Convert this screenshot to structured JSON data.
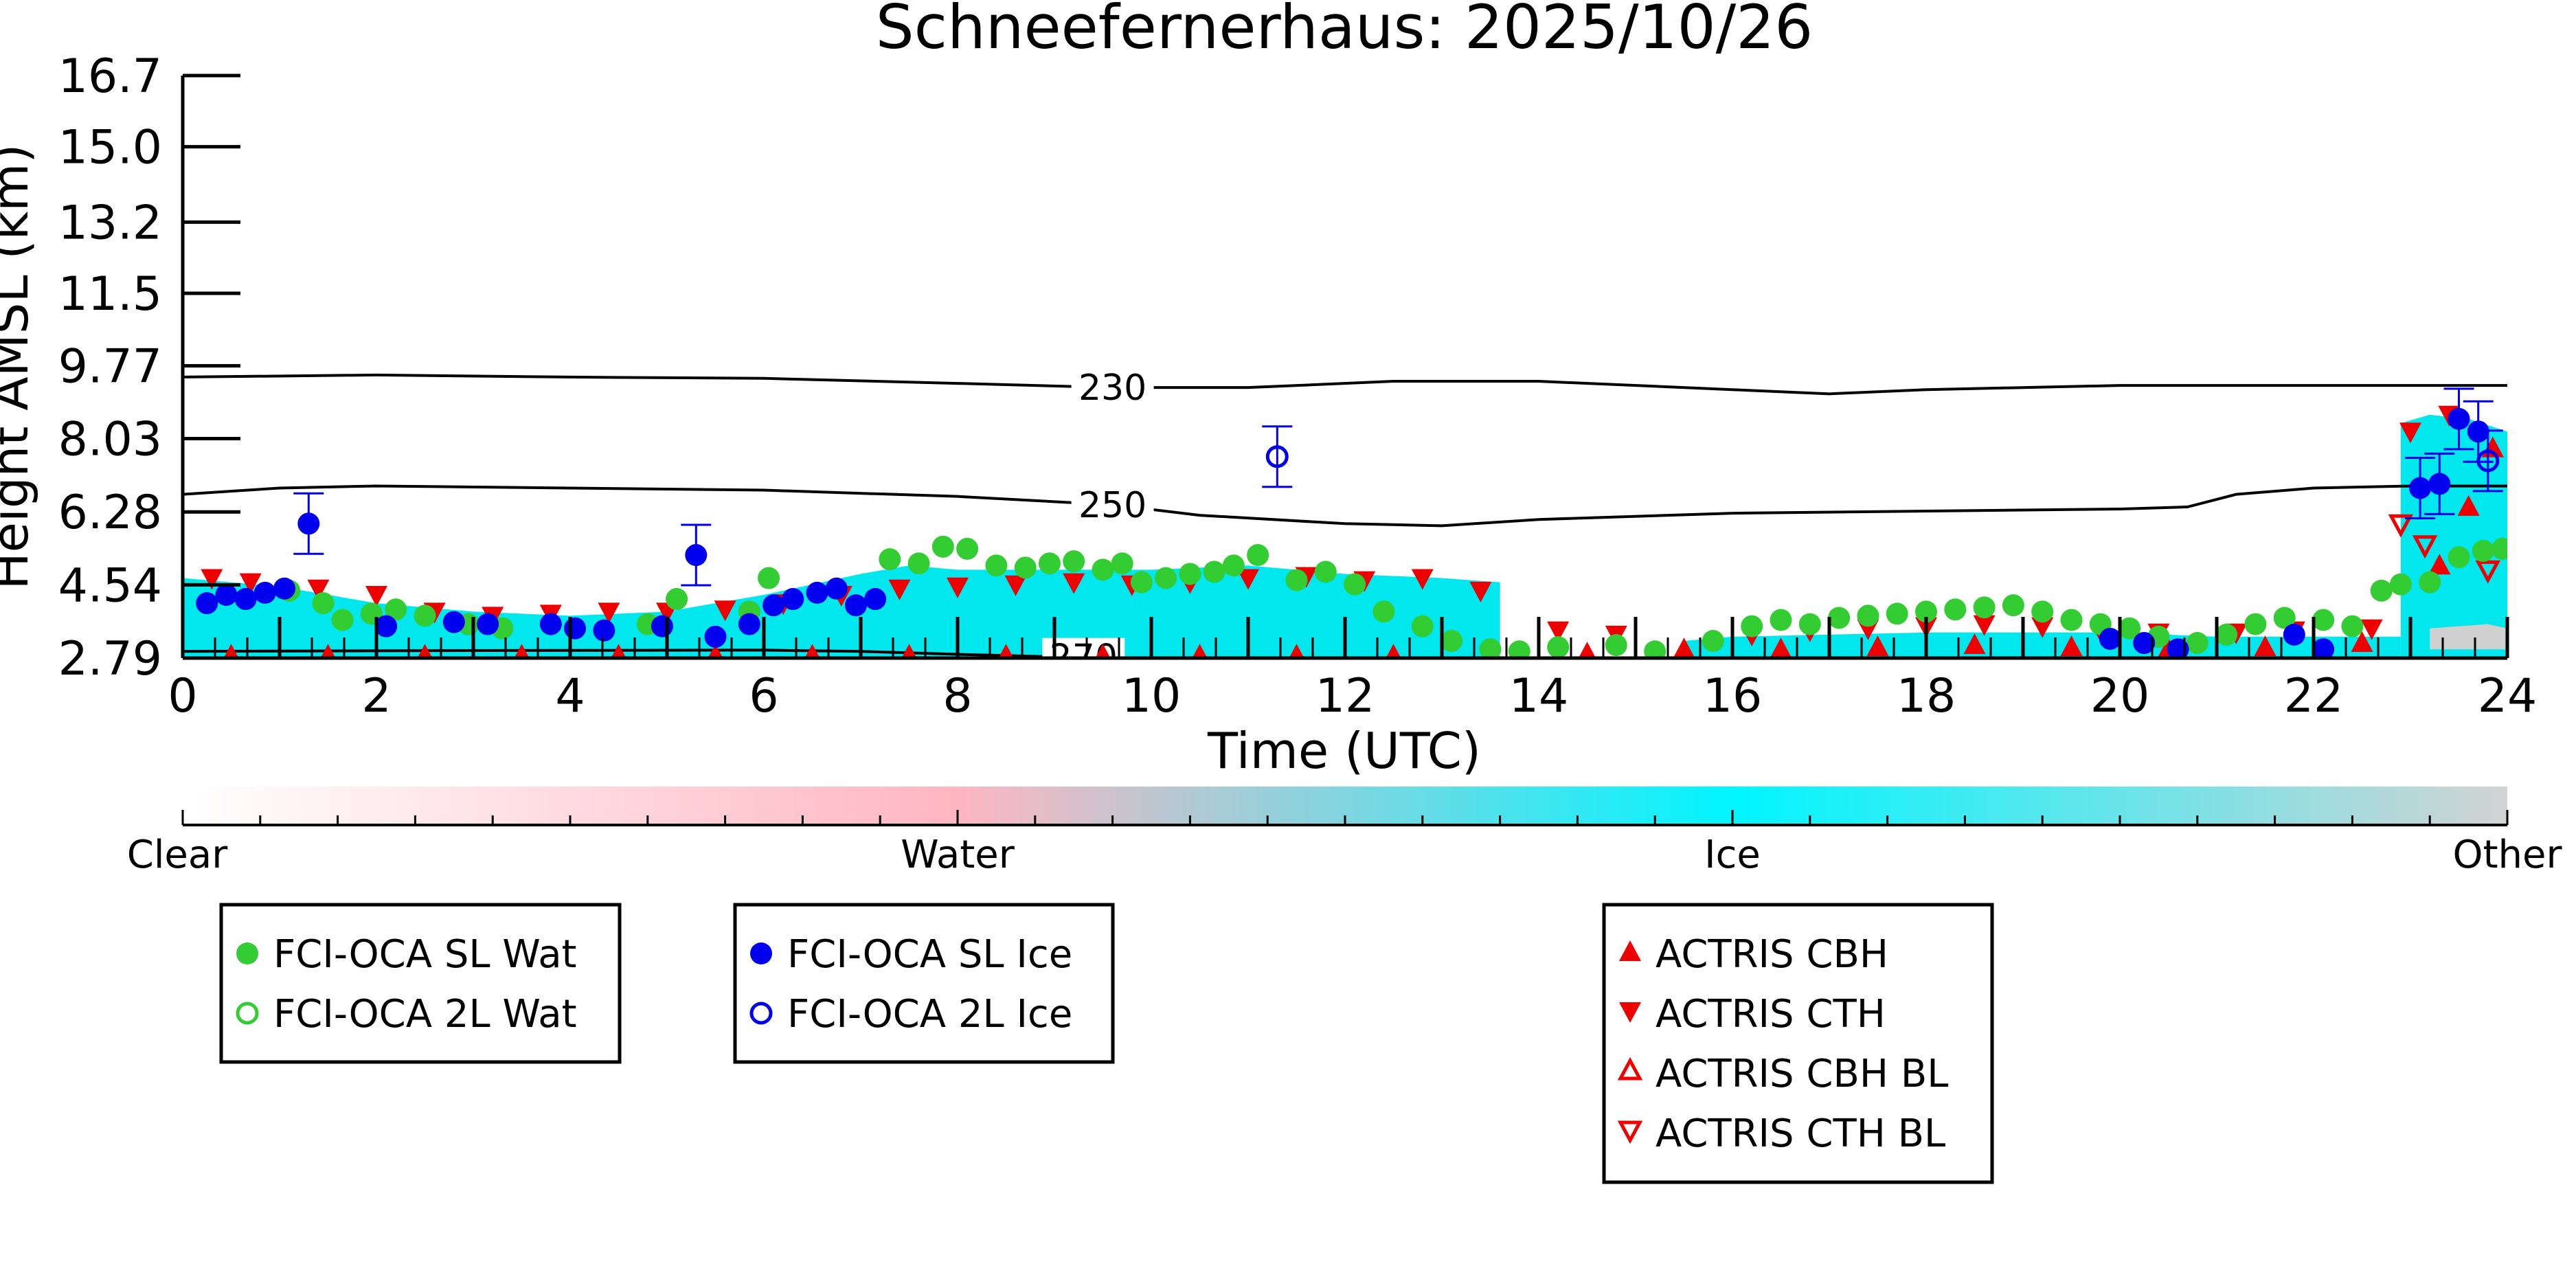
{
  "title": "Schneefernerhaus: 2025/10/26",
  "chart_data": {
    "type": "scatter",
    "title": "Schneefernerhaus: 2025/10/26",
    "xlabel": "Time (UTC)",
    "ylabel": "Height AMSL (km)",
    "xlim": [
      0,
      24
    ],
    "ylim": [
      2.79,
      16.7
    ],
    "x_ticks": [
      "0",
      "2",
      "4",
      "6",
      "8",
      "10",
      "12",
      "14",
      "16",
      "18",
      "20",
      "22",
      "24"
    ],
    "y_ticks": [
      "2.79",
      "4.54",
      "6.28",
      "8.03",
      "9.77",
      "11.5",
      "13.2",
      "15.0",
      "16.7"
    ],
    "y_tick_values": [
      2.79,
      4.54,
      6.28,
      8.03,
      9.77,
      11.5,
      13.2,
      15.0,
      16.7
    ],
    "colors": {
      "sl_wat": "#33cc33",
      "sl_ice": "#0000ee",
      "actris": "#ee0000",
      "ice_fill": "#00e8ee",
      "water_fill": "#ffb8c6",
      "other_fill": "#d0d0d0"
    },
    "colorbar": {
      "labels": [
        "Clear",
        "Water",
        "Ice",
        "Other"
      ],
      "colors": [
        "#ffffff",
        "#ffb6c1",
        "#00f5ff",
        "#d3d3d3"
      ]
    },
    "contours": [
      {
        "label": "230",
        "label_x": 9.6,
        "x": [
          0,
          2,
          4,
          6,
          8,
          9.6,
          11,
          12.5,
          14,
          16,
          17,
          18,
          20,
          22,
          24
        ],
        "y": [
          9.5,
          9.55,
          9.5,
          9.47,
          9.35,
          9.25,
          9.25,
          9.4,
          9.4,
          9.2,
          9.1,
          9.2,
          9.3,
          9.3,
          9.3
        ]
      },
      {
        "label": "250",
        "label_x": 9.6,
        "x": [
          0,
          1,
          2,
          4,
          6,
          8,
          9.6,
          10.5,
          12,
          13,
          14,
          16,
          18,
          20,
          20.7,
          21.2,
          22,
          23,
          24
        ],
        "y": [
          6.7,
          6.85,
          6.9,
          6.85,
          6.8,
          6.65,
          6.45,
          6.2,
          6.0,
          5.95,
          6.1,
          6.25,
          6.3,
          6.35,
          6.4,
          6.7,
          6.85,
          6.9,
          6.9
        ]
      },
      {
        "label": "270",
        "label_x": 9.3,
        "x": [
          0,
          3,
          6,
          7,
          8,
          9,
          10,
          12,
          14,
          16,
          18,
          20,
          24
        ],
        "y": [
          2.95,
          2.97,
          2.98,
          2.95,
          2.88,
          2.82,
          2.79,
          2.79,
          2.79,
          2.79,
          2.79,
          2.79,
          2.79
        ]
      }
    ],
    "series": [
      {
        "name": "FCI-OCA SL Wat",
        "marker": "circle-filled",
        "x": [
          1.1,
          1.45,
          1.65,
          1.95,
          2.2,
          2.5,
          2.95,
          3.3,
          4.8,
          5.1,
          5.85,
          6.05,
          7.3,
          7.6,
          7.85,
          8.1,
          8.4,
          8.7,
          8.95,
          9.2,
          9.5,
          9.7,
          9.9,
          10.15,
          10.4,
          10.65,
          10.85,
          11.1,
          11.5,
          11.8,
          12.1,
          12.4,
          12.8,
          13.1,
          13.5,
          13.8,
          14.2,
          14.8,
          15.2,
          15.8,
          16.2,
          16.5,
          16.8,
          17.1,
          17.4,
          17.7,
          18.0,
          18.3,
          18.6,
          18.9,
          19.2,
          19.5,
          19.8,
          20.1,
          20.4,
          20.8,
          21.1,
          21.4,
          21.7,
          22.1,
          22.4,
          22.7,
          22.9,
          23.2,
          23.5,
          23.75,
          23.95
        ],
        "y": [
          4.4,
          4.1,
          3.7,
          3.85,
          3.95,
          3.8,
          3.6,
          3.5,
          3.6,
          4.2,
          3.9,
          4.7,
          5.15,
          5.05,
          5.45,
          5.4,
          5.0,
          4.95,
          5.05,
          5.1,
          4.9,
          5.05,
          4.6,
          4.7,
          4.8,
          4.85,
          5.0,
          5.25,
          4.65,
          4.85,
          4.55,
          3.9,
          3.55,
          3.2,
          3.0,
          2.95,
          3.05,
          3.1,
          2.95,
          3.2,
          3.55,
          3.7,
          3.6,
          3.75,
          3.8,
          3.85,
          3.9,
          3.95,
          4.0,
          4.05,
          3.9,
          3.7,
          3.6,
          3.5,
          3.3,
          3.15,
          3.35,
          3.6,
          3.75,
          3.7,
          3.55,
          4.4,
          4.55,
          4.6,
          5.2,
          5.35,
          5.4
        ]
      },
      {
        "name": "FCI-OCA 2L Wat",
        "marker": "circle-open",
        "x": [],
        "y": []
      },
      {
        "name": "FCI-OCA SL Ice",
        "marker": "circle-filled",
        "x": [
          0.25,
          0.45,
          0.65,
          0.85,
          1.05,
          1.3,
          2.1,
          2.8,
          3.15,
          3.8,
          4.05,
          4.35,
          4.95,
          5.3,
          5.5,
          5.85,
          6.1,
          6.3,
          6.55,
          6.75,
          6.95,
          7.15,
          19.9,
          20.25,
          20.6,
          21.8,
          22.1,
          23.1,
          23.3,
          23.5,
          23.7
        ],
        "y": [
          4.1,
          4.3,
          4.2,
          4.35,
          4.45,
          6.0,
          3.55,
          3.65,
          3.6,
          3.6,
          3.5,
          3.45,
          3.55,
          5.25,
          3.3,
          3.6,
          4.05,
          4.2,
          4.35,
          4.45,
          4.05,
          4.2,
          3.25,
          3.15,
          3.0,
          3.35,
          3.0,
          6.85,
          6.95,
          8.5,
          8.2
        ]
      },
      {
        "name": "FCI-OCA 2L Ice",
        "marker": "circle-open",
        "x": [
          11.3,
          23.8
        ],
        "y": [
          7.6,
          7.5
        ]
      },
      {
        "name": "ACTRIS CBH",
        "marker": "triangle-up-filled",
        "x": [
          0.5,
          1.5,
          2.5,
          3.5,
          4.5,
          5.5,
          6.5,
          7.5,
          8.5,
          9.5,
          10.5,
          11.5,
          12.5,
          13.5,
          14.5,
          15.5,
          16.5,
          17.5,
          18.5,
          19.5,
          20.5,
          21.5,
          22.5,
          23.3,
          23.6,
          23.85
        ],
        "y": [
          2.85,
          2.85,
          2.85,
          2.85,
          2.85,
          2.85,
          2.85,
          2.85,
          2.85,
          2.85,
          2.85,
          2.85,
          2.85,
          2.9,
          2.9,
          3.0,
          3.0,
          3.05,
          3.1,
          3.05,
          3.0,
          3.05,
          3.15,
          5.0,
          6.4,
          7.8
        ]
      },
      {
        "name": "ACTRIS CTH",
        "marker": "triangle-down-filled",
        "x": [
          0.3,
          0.7,
          1.4,
          2.0,
          2.6,
          3.2,
          3.8,
          4.4,
          5.0,
          5.6,
          6.2,
          6.8,
          7.4,
          8.0,
          8.6,
          9.2,
          9.8,
          10.4,
          11.0,
          11.6,
          12.2,
          12.8,
          13.4,
          14.2,
          14.8,
          16.2,
          16.8,
          17.4,
          18.0,
          18.6,
          19.2,
          19.8,
          20.4,
          21.2,
          21.8,
          22.6,
          23.0,
          23.4
        ],
        "y": [
          4.7,
          4.6,
          4.45,
          4.3,
          3.9,
          3.8,
          3.85,
          3.9,
          3.9,
          3.95,
          4.1,
          4.3,
          4.45,
          4.5,
          4.55,
          4.6,
          4.55,
          4.6,
          4.7,
          4.75,
          4.65,
          4.7,
          4.4,
          3.45,
          3.35,
          3.35,
          3.45,
          3.5,
          3.55,
          3.6,
          3.55,
          3.45,
          3.4,
          3.4,
          3.45,
          3.5,
          8.2,
          8.6
        ]
      },
      {
        "name": "ACTRIS CBH BL",
        "marker": "triangle-up-open",
        "x": [],
        "y": []
      },
      {
        "name": "ACTRIS CTH BL",
        "marker": "triangle-down-open",
        "x": [
          22.9,
          23.15,
          23.8
        ],
        "y": [
          6.0,
          5.5,
          4.9
        ]
      }
    ],
    "cloud_regions": [
      {
        "phase": "Ice",
        "x": [
          0.0,
          1.0,
          2.0,
          3.0,
          4.0,
          5.0,
          6.0,
          7.0,
          7.5,
          8.0,
          9.0,
          10.0,
          11.0,
          12.0,
          13.0,
          13.6,
          13.6,
          0.0
        ],
        "y": [
          4.7,
          4.5,
          4.1,
          3.9,
          3.8,
          3.9,
          4.3,
          4.8,
          5.0,
          4.9,
          4.9,
          4.9,
          5.0,
          4.8,
          4.7,
          4.6,
          2.79,
          2.79
        ]
      },
      {
        "phase": "Ice",
        "x": [
          15.5,
          16.0,
          18.0,
          20.0,
          21.0,
          22.0,
          22.9,
          22.9,
          15.5
        ],
        "y": [
          3.2,
          3.3,
          3.4,
          3.4,
          3.3,
          3.3,
          3.3,
          2.79,
          2.79
        ]
      },
      {
        "phase": "Ice",
        "x": [
          22.9,
          23.2,
          23.6,
          24.0,
          24.0,
          22.9
        ],
        "y": [
          8.4,
          8.6,
          8.5,
          8.2,
          2.79,
          2.79
        ]
      },
      {
        "phase": "Other",
        "x": [
          23.2,
          23.8,
          24.0,
          24.0,
          23.2
        ],
        "y": [
          3.5,
          3.6,
          3.5,
          3.0,
          3.0
        ]
      }
    ],
    "legend": {
      "boxes": [
        [
          "FCI-OCA SL Wat",
          "FCI-OCA 2L Wat"
        ],
        [
          "FCI-OCA SL Ice",
          "FCI-OCA 2L Ice"
        ],
        [
          "ACTRIS CBH",
          "ACTRIS CTH",
          "ACTRIS CBH BL",
          "ACTRIS CTH BL"
        ]
      ],
      "placement": "bottom"
    }
  }
}
